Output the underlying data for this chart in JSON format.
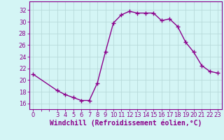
{
  "x": [
    0,
    3,
    4,
    5,
    6,
    7,
    8,
    9,
    10,
    11,
    12,
    13,
    14,
    15,
    16,
    17,
    18,
    19,
    20,
    21,
    22,
    23
  ],
  "y": [
    21.0,
    18.2,
    17.5,
    17.0,
    16.5,
    16.5,
    19.5,
    24.8,
    29.8,
    31.2,
    31.8,
    31.5,
    31.5,
    31.5,
    30.2,
    30.5,
    29.2,
    26.5,
    24.8,
    22.5,
    21.5,
    21.2
  ],
  "line_color": "#8B008B",
  "marker": "+",
  "marker_size": 4,
  "bg_color": "#d4f5f5",
  "grid_color": "#b8dada",
  "xlabel": "Windchill (Refroidissement éolien,°C)",
  "xlabel_color": "#8B008B",
  "xlabel_fontsize": 7,
  "ylabel_ticks": [
    16,
    18,
    20,
    22,
    24,
    26,
    28,
    30,
    32
  ],
  "xtick_labels": [
    0,
    3,
    4,
    5,
    6,
    7,
    8,
    9,
    10,
    11,
    12,
    13,
    14,
    15,
    16,
    17,
    18,
    19,
    20,
    21,
    22,
    23
  ],
  "xlim": [
    -0.5,
    23.5
  ],
  "ylim": [
    15.0,
    33.5
  ],
  "tick_color": "#8B008B",
  "tick_fontsize": 6,
  "spine_color": "#8B008B"
}
